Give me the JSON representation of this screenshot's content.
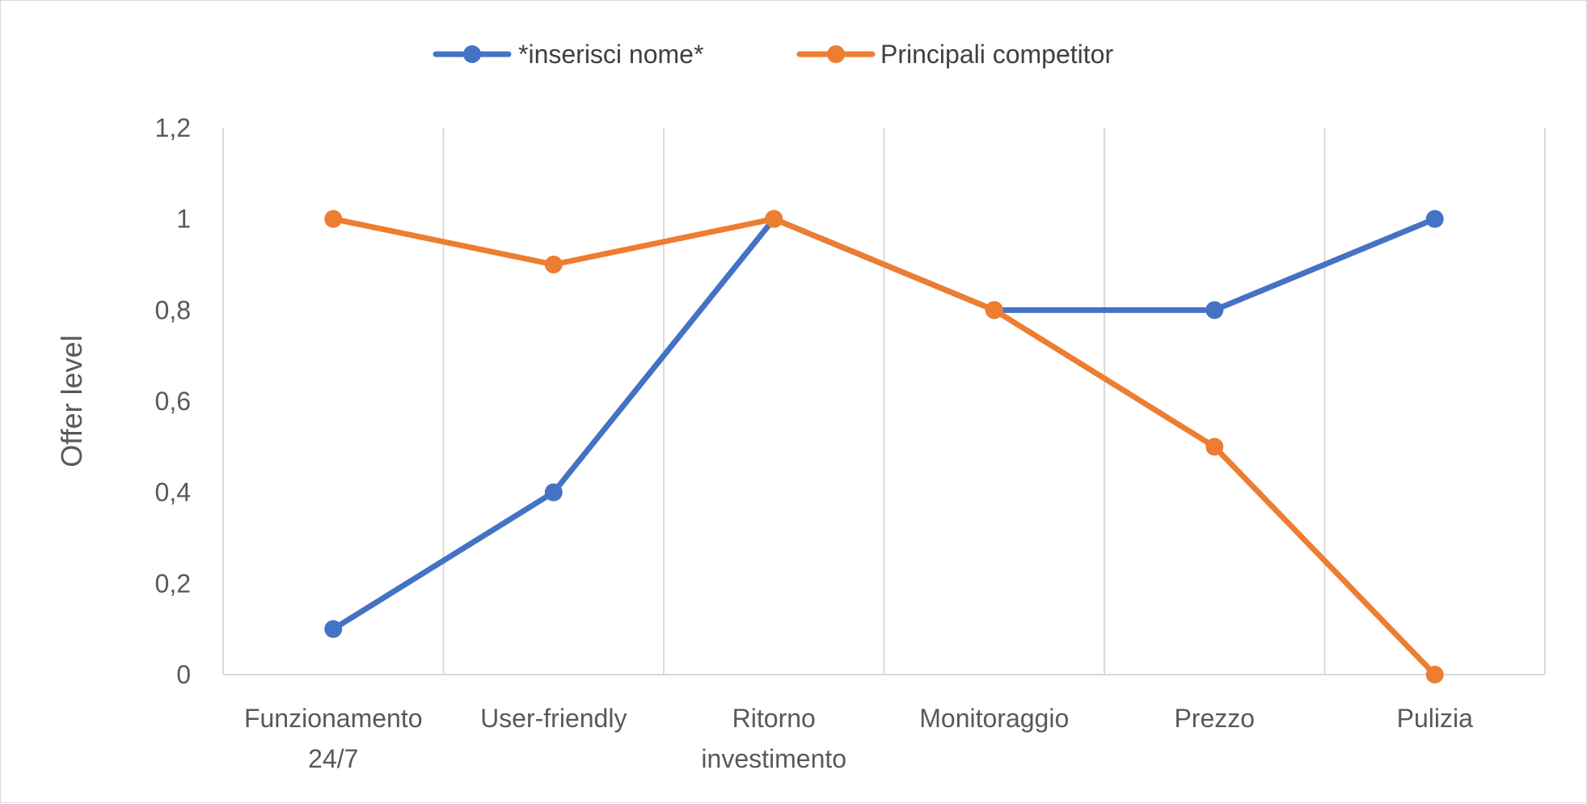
{
  "chart_data": {
    "type": "line",
    "categories": [
      [
        "Funzionamento",
        "24/7"
      ],
      [
        "User-friendly"
      ],
      [
        "Ritorno",
        "investimento"
      ],
      [
        "Monitoraggio"
      ],
      [
        "Prezzo"
      ],
      [
        "Pulizia"
      ]
    ],
    "series": [
      {
        "name": "*inserisci nome*",
        "color": "#4472C4",
        "values": [
          0.1,
          0.4,
          1.0,
          0.8,
          0.8,
          1.0
        ]
      },
      {
        "name": "Principali competitor",
        "color": "#ED7D31",
        "values": [
          1.0,
          0.9,
          1.0,
          0.8,
          0.5,
          0.0
        ]
      }
    ],
    "title": "",
    "xlabel": "",
    "ylabel": "Offer level",
    "ylim": [
      0,
      1.2
    ],
    "yticks": [
      "0",
      "0,2",
      "0,4",
      "0,6",
      "0,8",
      "1",
      "1,2"
    ],
    "grid": "vertical",
    "legend": "top-center"
  }
}
